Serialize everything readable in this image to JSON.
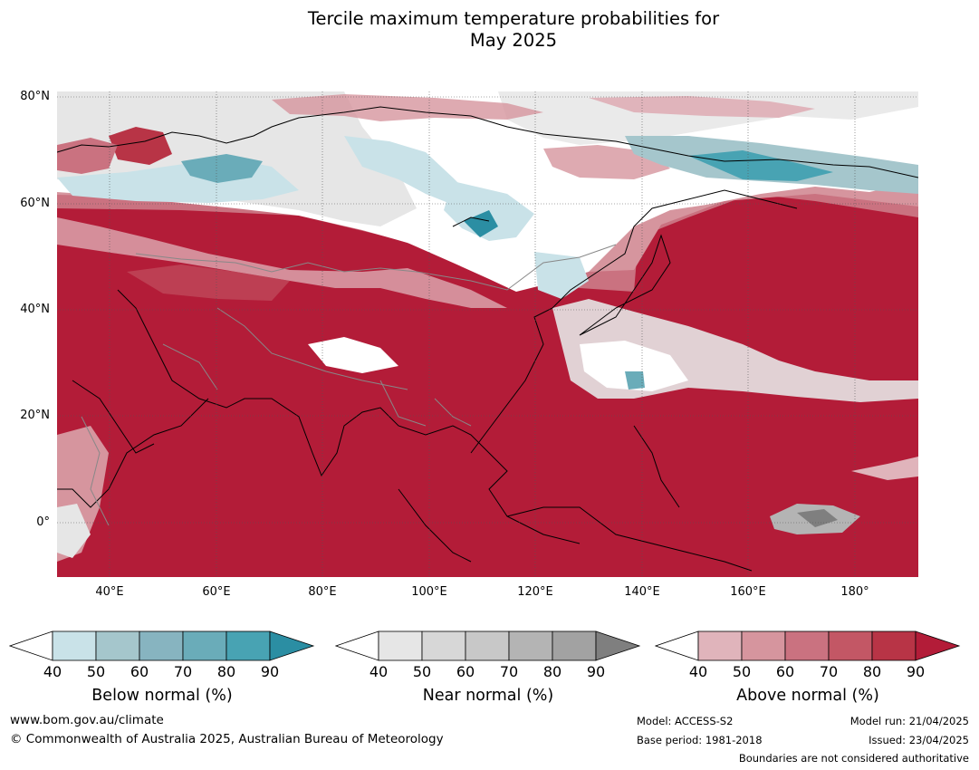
{
  "title_line1": "Tercile maximum temperature probabilities for",
  "title_line2": "May 2025",
  "lat_labels": [
    "80°N",
    "60°N",
    "40°N",
    "20°N",
    "0°"
  ],
  "lon_labels": [
    "40°E",
    "60°E",
    "80°E",
    "100°E",
    "120°E",
    "140°E",
    "160°E",
    "180°"
  ],
  "colorbars": [
    {
      "title": "Below normal (%)",
      "ticks": [
        "40",
        "50",
        "60",
        "70",
        "80",
        "90"
      ],
      "colors": [
        "#ffffff",
        "#c9e2e8",
        "#a5c6cc",
        "#87b4c0",
        "#6aacb9",
        "#48a3b3",
        "#2b8ea3"
      ]
    },
    {
      "title": "Near normal (%)",
      "ticks": [
        "40",
        "50",
        "60",
        "70",
        "80",
        "90"
      ],
      "colors": [
        "#ffffff",
        "#e6e6e6",
        "#d7d7d7",
        "#c8c8c8",
        "#b4b4b4",
        "#a2a2a2",
        "#7f7f7f"
      ]
    },
    {
      "title": "Above normal (%)",
      "ticks": [
        "40",
        "50",
        "60",
        "70",
        "80",
        "90"
      ],
      "colors": [
        "#ffffff",
        "#e0b4bb",
        "#d6959e",
        "#ca7280",
        "#c35765",
        "#b83446",
        "#b31c38"
      ]
    }
  ],
  "footer": {
    "website": "www.bom.gov.au/climate",
    "copyright": "© Commonwealth of Australia 2025, Australian Bureau of Meteorology",
    "model": "Model: ACCESS-S2",
    "base_period": "Base period: 1981-2018",
    "model_run": "Model run: 21/04/2025",
    "issued": "Issued: 23/04/2025",
    "boundaries": "Boundaries are not considered authoritative"
  }
}
